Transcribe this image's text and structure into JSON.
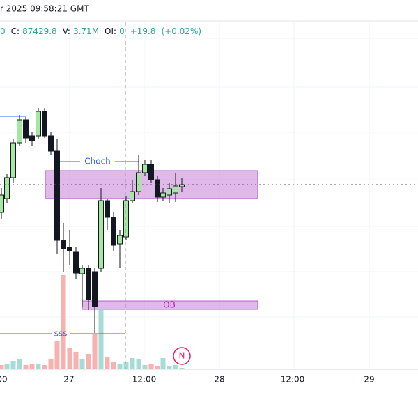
{
  "header": {
    "timestamp": "r 2025 09:58:21 GMT"
  },
  "ohlc": {
    "open_value": "0",
    "close_label": "C:",
    "close_value": "87429.8",
    "volume_label": "V:",
    "volume_value": "3.71M",
    "oi_label": "OI:",
    "oi_value": "0",
    "change": "+19.8",
    "change_pct": "(+0.02%)"
  },
  "annotations": {
    "choch": "Choch",
    "ob": "OB",
    "sss": "sss",
    "news": "N"
  },
  "x_axis": {
    "labels": [
      "00",
      "27",
      "12:00",
      "28",
      "12:00",
      "29"
    ]
  }
}
